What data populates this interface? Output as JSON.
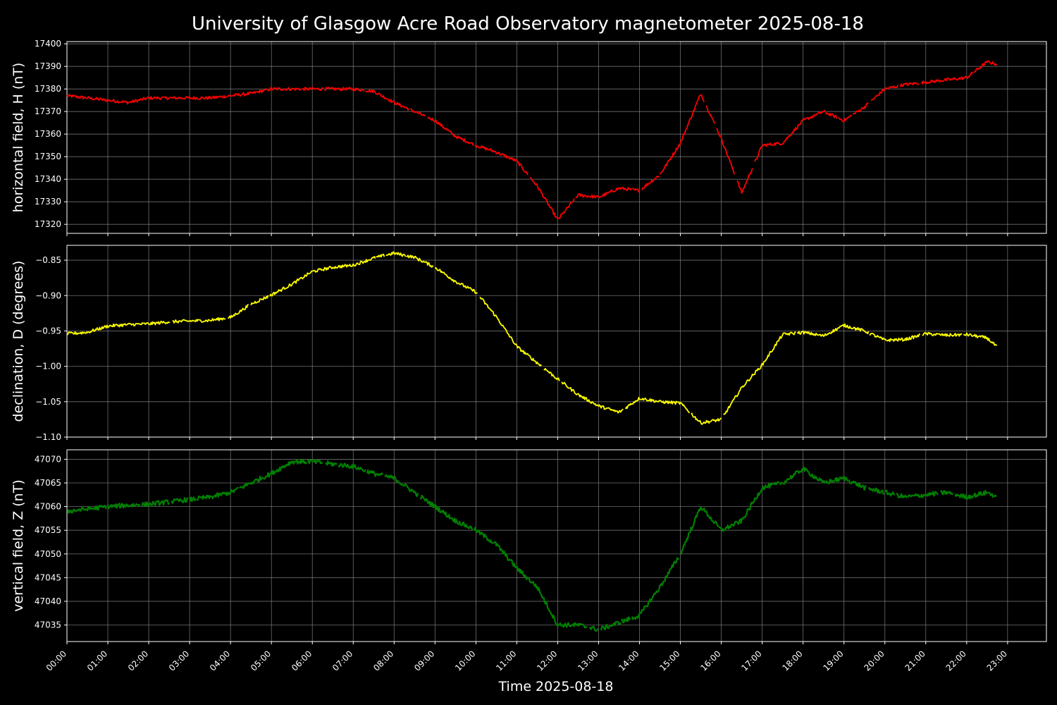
{
  "chart_data": {
    "type": "line",
    "title": "University of Glasgow Acre Road Observatory magnetometer 2025-08-18",
    "xlabel": "Time 2025-08-18",
    "x_ticks": [
      "00:00",
      "01:00",
      "02:00",
      "03:00",
      "04:00",
      "05:00",
      "06:00",
      "07:00",
      "08:00",
      "09:00",
      "10:00",
      "11:00",
      "12:00",
      "13:00",
      "14:00",
      "15:00",
      "16:00",
      "17:00",
      "18:00",
      "19:00",
      "20:00",
      "21:00",
      "22:00",
      "23:00"
    ],
    "xlim_hours": [
      0,
      23.95
    ],
    "grid": true,
    "background": "#000000",
    "panels": [
      {
        "name": "H",
        "ylabel": "horizontal field, H (nT)",
        "color": "#ff0000",
        "ylim": [
          17316,
          17401
        ],
        "yticks": [
          17320,
          17330,
          17340,
          17350,
          17360,
          17370,
          17380,
          17390,
          17400
        ],
        "ytick_labels": [
          "17320",
          "17330",
          "17340",
          "17350",
          "17360",
          "17370",
          "17380",
          "17390",
          "17400"
        ],
        "x_hours": [
          0.0,
          0.5,
          1.0,
          1.5,
          2.0,
          2.5,
          3.0,
          3.5,
          4.0,
          4.5,
          5.0,
          5.5,
          6.0,
          6.5,
          7.0,
          7.5,
          8.0,
          8.5,
          9.0,
          9.5,
          10.0,
          10.5,
          11.0,
          11.5,
          12.0,
          12.5,
          13.0,
          13.5,
          14.0,
          14.5,
          15.0,
          15.5,
          16.0,
          16.5,
          17.0,
          17.5,
          18.0,
          18.5,
          19.0,
          19.5,
          20.0,
          20.5,
          21.0,
          21.5,
          22.0,
          22.5,
          22.75
        ],
        "values": [
          17377,
          17376,
          17375,
          17374,
          17376,
          17376,
          17376,
          17376,
          17377,
          17378,
          17380,
          17380,
          17380,
          17380,
          17380,
          17379,
          17374,
          17370,
          17366,
          17359,
          17355,
          17352,
          17348,
          17337,
          17322,
          17333,
          17332,
          17336,
          17335,
          17342,
          17356,
          17378,
          17358,
          17334,
          17355,
          17356,
          17366,
          17370,
          17366,
          17372,
          17380,
          17382,
          17383,
          17384,
          17385,
          17392,
          17391
        ]
      },
      {
        "name": "D",
        "ylabel": "declination, D (degrees)",
        "color": "#ffff00",
        "ylim": [
          -1.1,
          -0.829
        ],
        "yticks": [
          -1.1,
          -1.05,
          -1.0,
          -0.95,
          -0.9,
          -0.85
        ],
        "ytick_labels": [
          "−1.10",
          "−1.05",
          "−1.00",
          "−0.95",
          "−0.90",
          "−0.85"
        ],
        "x_hours": [
          0.0,
          0.5,
          1.0,
          1.5,
          2.0,
          2.5,
          3.0,
          3.5,
          4.0,
          4.5,
          5.0,
          5.5,
          6.0,
          6.5,
          7.0,
          7.5,
          8.0,
          8.5,
          9.0,
          9.5,
          10.0,
          10.5,
          11.0,
          11.5,
          12.0,
          12.5,
          13.0,
          13.5,
          14.0,
          14.5,
          15.0,
          15.5,
          16.0,
          16.5,
          17.0,
          17.5,
          18.0,
          18.5,
          19.0,
          19.5,
          20.0,
          20.5,
          21.0,
          21.5,
          22.0,
          22.5,
          22.75
        ],
        "values": [
          -0.954,
          -0.952,
          -0.943,
          -0.941,
          -0.94,
          -0.937,
          -0.936,
          -0.935,
          -0.931,
          -0.912,
          -0.899,
          -0.884,
          -0.866,
          -0.86,
          -0.857,
          -0.847,
          -0.84,
          -0.846,
          -0.86,
          -0.88,
          -0.895,
          -0.93,
          -0.972,
          -0.995,
          -1.018,
          -1.04,
          -1.056,
          -1.065,
          -1.045,
          -1.05,
          -1.052,
          -1.08,
          -1.075,
          -1.03,
          -0.998,
          -0.955,
          -0.952,
          -0.957,
          -0.942,
          -0.95,
          -0.963,
          -0.962,
          -0.954,
          -0.956,
          -0.955,
          -0.96,
          -0.973
        ]
      },
      {
        "name": "Z",
        "ylabel": "vertical field, Z (nT)",
        "color": "#008000",
        "ylim": [
          47031.5,
          47072
        ],
        "yticks": [
          47035,
          47040,
          47045,
          47050,
          47055,
          47060,
          47065,
          47070
        ],
        "ytick_labels": [
          "47035",
          "47040",
          "47045",
          "47050",
          "47055",
          "47060",
          "47065",
          "47070"
        ],
        "x_hours": [
          0.0,
          0.5,
          1.0,
          1.5,
          2.0,
          2.5,
          3.0,
          3.5,
          4.0,
          4.5,
          5.0,
          5.5,
          6.0,
          6.5,
          7.0,
          7.5,
          8.0,
          8.5,
          9.0,
          9.5,
          10.0,
          10.5,
          11.0,
          11.5,
          12.0,
          12.5,
          13.0,
          13.5,
          14.0,
          14.5,
          15.0,
          15.5,
          16.0,
          16.5,
          17.0,
          17.5,
          18.0,
          18.5,
          19.0,
          19.5,
          20.0,
          20.5,
          21.0,
          21.5,
          22.0,
          22.5,
          22.75
        ],
        "values": [
          47059,
          47059.5,
          47060,
          47060.3,
          47060.5,
          47061,
          47061.5,
          47062,
          47063,
          47065,
          47067,
          47069.5,
          47069.5,
          47069,
          47068.5,
          47067,
          47066,
          47063,
          47060,
          47057,
          47055,
          47052,
          47047,
          47043,
          47035,
          47035,
          47034,
          47035.5,
          47037,
          47043,
          47050,
          47060,
          47055,
          47057,
          47064,
          47065,
          47068,
          47065,
          47066,
          47064,
          47063,
          47062,
          47062.5,
          47063,
          47062,
          47063,
          47062
        ]
      }
    ]
  }
}
